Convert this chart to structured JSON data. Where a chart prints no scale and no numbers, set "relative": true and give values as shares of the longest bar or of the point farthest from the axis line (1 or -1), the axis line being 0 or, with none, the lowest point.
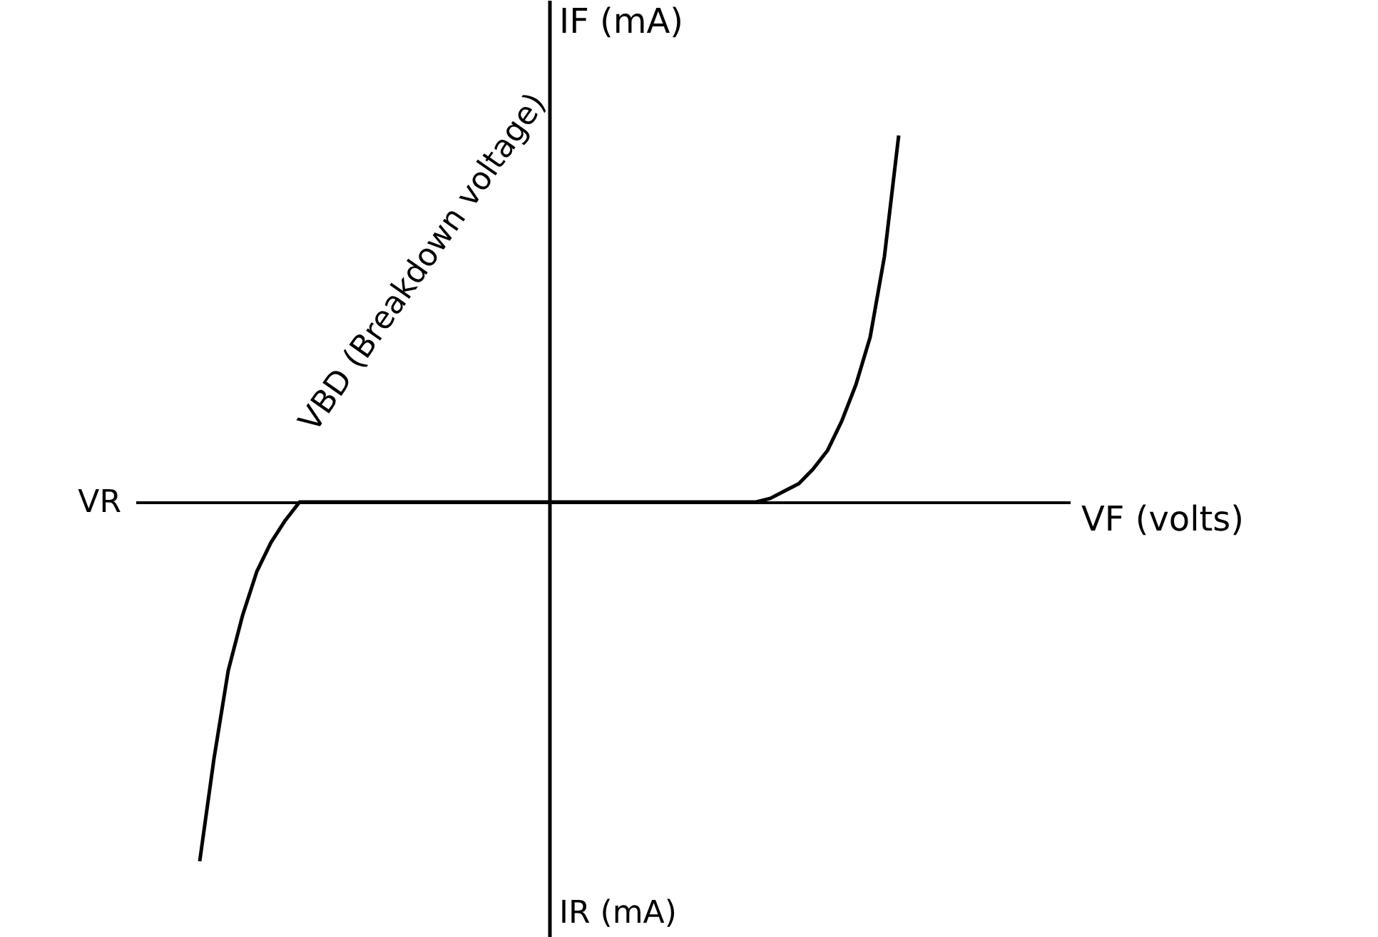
{
  "chart_data": {
    "type": "line",
    "relative": true,
    "tick_labels": false,
    "color": "#000000",
    "xlabel": "VF (volts)",
    "ylabel": "IF (mA)",
    "annotations": [
      "VR",
      "IR (mA)",
      "VBD (Breakdown voltage)"
    ],
    "categories": [
      null,
      null,
      null,
      null,
      null,
      null,
      null,
      null,
      null,
      null,
      null,
      null,
      null,
      null,
      null,
      null,
      null,
      null,
      null,
      null,
      null,
      null,
      null,
      null,
      null,
      null,
      null,
      null,
      null,
      null,
      null,
      null,
      null,
      null,
      null,
      null,
      null,
      null,
      null,
      null,
      null,
      null,
      null,
      null,
      null,
      null,
      null,
      null,
      null,
      null,
      null,
      null,
      null,
      null,
      null,
      null,
      null,
      null,
      null,
      null,
      null,
      null,
      null,
      null,
      null
    ],
    "values": [
      null,
      null,
      null,
      null,
      -0.98,
      -0.7,
      -0.46,
      -0.31,
      -0.19,
      -0.11,
      -0.05,
      0,
      0,
      0,
      0,
      0,
      0,
      0,
      0,
      0,
      0,
      0,
      0,
      0,
      0,
      0,
      0,
      0,
      0,
      0,
      0,
      0,
      0,
      0,
      0,
      0,
      0,
      0,
      0,
      0,
      0,
      0,
      0,
      0,
      0.01,
      0.03,
      0.05,
      0.09,
      0.14,
      0.22,
      0.32,
      0.45,
      0.67,
      1.0,
      null,
      null,
      null,
      null,
      null,
      null,
      null,
      null,
      null,
      null,
      null
    ]
  }
}
